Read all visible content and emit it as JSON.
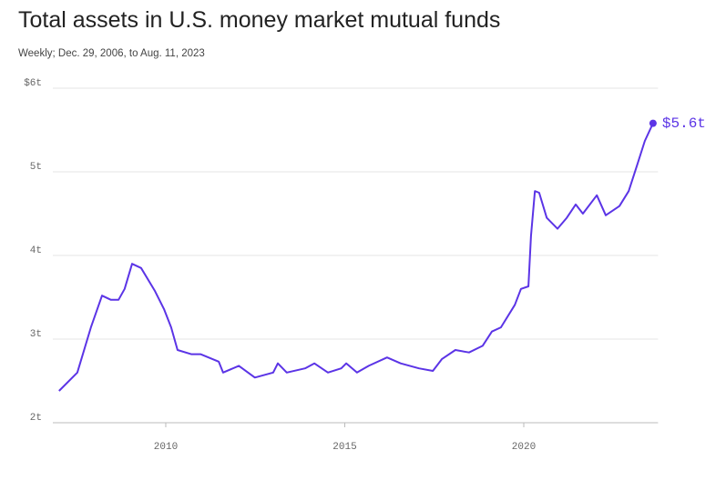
{
  "chart_data": {
    "type": "line",
    "title": "Total assets in U.S. money market mutual funds",
    "subtitle": "Weekly; Dec. 29, 2006, to Aug. 11, 2023",
    "xlim": [
      2006.8,
      2023.75
    ],
    "xticks": [
      2010,
      2015,
      2020
    ],
    "ylim": [
      2,
      6
    ],
    "yticks": [
      {
        "value": 2,
        "label": "2t"
      },
      {
        "value": 3,
        "label": "3t"
      },
      {
        "value": 4,
        "label": "4t"
      },
      {
        "value": 5,
        "label": "5t"
      },
      {
        "value": 6,
        "label": "$6t"
      }
    ],
    "grid": true,
    "series": [
      {
        "color": "#5b34e6",
        "x": [
          2007.02,
          2007.53,
          2007.91,
          2008.22,
          2008.47,
          2008.68,
          2008.85,
          2009.06,
          2009.31,
          2009.69,
          2009.95,
          2010.15,
          2010.33,
          2010.71,
          2010.97,
          2011.48,
          2011.6,
          2012.04,
          2012.49,
          2013.0,
          2013.13,
          2013.38,
          2013.89,
          2014.15,
          2014.53,
          2014.9,
          2015.04,
          2015.34,
          2015.67,
          2016.18,
          2016.56,
          2017.07,
          2017.46,
          2017.71,
          2018.09,
          2018.47,
          2018.85,
          2019.11,
          2019.36,
          2019.75,
          2019.92,
          2020.13,
          2020.2,
          2020.31,
          2020.43,
          2020.64,
          2020.94,
          2021.2,
          2021.45,
          2021.65,
          2022.04,
          2022.29,
          2022.67,
          2022.93,
          2023.18,
          2023.38,
          2023.61
        ],
        "values": [
          2.38,
          2.6,
          3.14,
          3.52,
          3.47,
          3.47,
          3.6,
          3.9,
          3.85,
          3.58,
          3.36,
          3.14,
          2.87,
          2.82,
          2.82,
          2.73,
          2.6,
          2.68,
          2.54,
          2.6,
          2.71,
          2.6,
          2.65,
          2.71,
          2.6,
          2.65,
          2.71,
          2.6,
          2.68,
          2.78,
          2.71,
          2.65,
          2.62,
          2.76,
          2.87,
          2.84,
          2.92,
          3.09,
          3.14,
          3.41,
          3.6,
          3.63,
          4.23,
          4.77,
          4.75,
          4.45,
          4.32,
          4.45,
          4.61,
          4.5,
          4.72,
          4.48,
          4.59,
          4.77,
          5.1,
          5.37,
          5.58
        ]
      }
    ],
    "annotations": [
      {
        "text": "$5.6t",
        "x": 2023.61,
        "y": 5.58
      }
    ]
  }
}
